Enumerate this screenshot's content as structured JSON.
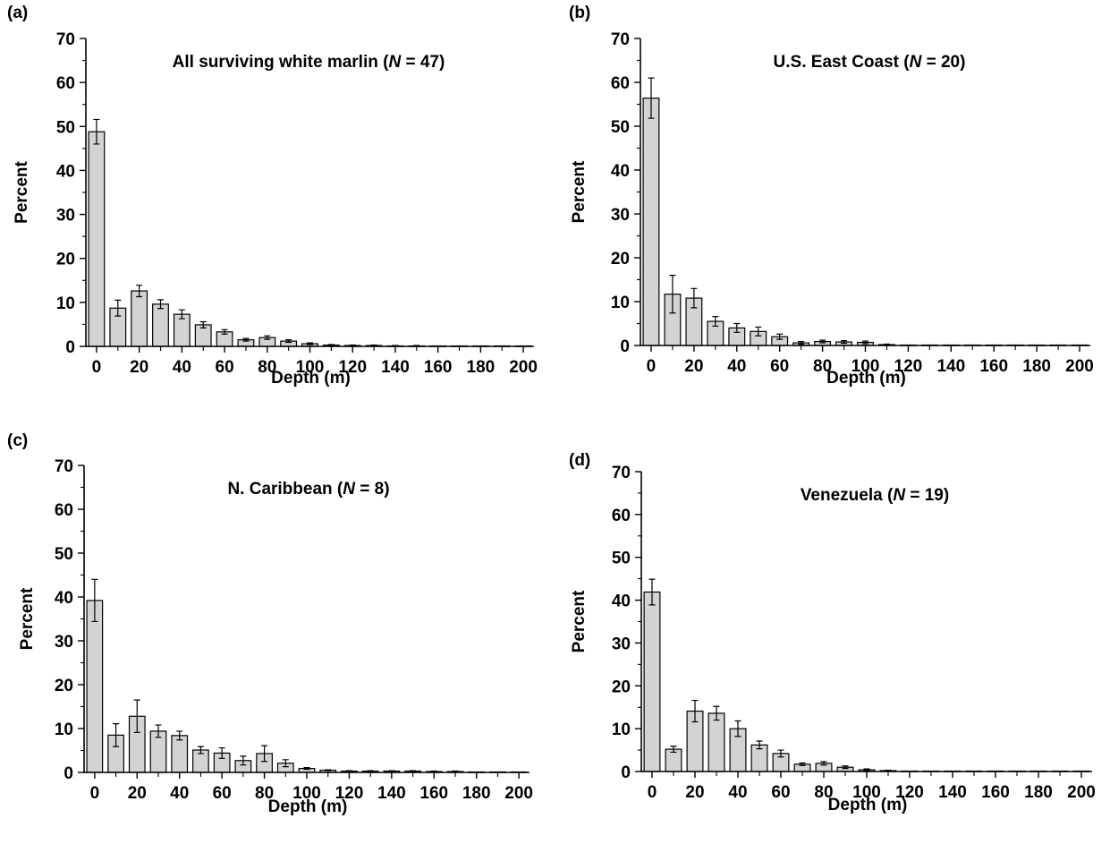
{
  "chart_data": [
    {
      "type": "bar",
      "panel_label": "(a)",
      "title": {
        "prefix": "All surviving white marlin (",
        "italic": "N",
        "suffix": " = 47)"
      },
      "xlabel": "Depth (m)",
      "ylabel": "Percent",
      "ylim": [
        0,
        70
      ],
      "yticks": [
        0,
        10,
        20,
        30,
        40,
        50,
        60,
        70
      ],
      "xticks": [
        0,
        20,
        40,
        60,
        80,
        100,
        120,
        140,
        160,
        180,
        200
      ],
      "x": [
        0,
        10,
        20,
        30,
        40,
        50,
        60,
        70,
        80,
        90,
        100,
        110,
        120,
        130,
        140,
        150,
        160,
        170,
        180,
        190,
        200
      ],
      "values": [
        48.8,
        8.7,
        12.6,
        9.6,
        7.3,
        4.9,
        3.3,
        1.5,
        2.0,
        1.2,
        0.6,
        0.3,
        0.2,
        0.2,
        0.1,
        0.1,
        0.1,
        0.1,
        0.1,
        0.1,
        0.1
      ],
      "errors": [
        2.8,
        1.8,
        1.3,
        1.0,
        1.0,
        0.7,
        0.5,
        0.3,
        0.4,
        0.3,
        0.2,
        0.1,
        0.1,
        0.1,
        0.1,
        0.1,
        0.0,
        0.0,
        0.0,
        0.0,
        0.0
      ]
    },
    {
      "type": "bar",
      "panel_label": "(b)",
      "title": {
        "prefix": "U.S. East Coast (",
        "italic": "N",
        "suffix": " = 20)"
      },
      "xlabel": "Depth (m)",
      "ylabel": "Percent",
      "ylim": [
        0,
        70
      ],
      "yticks": [
        0,
        10,
        20,
        30,
        40,
        50,
        60,
        70
      ],
      "xticks": [
        0,
        20,
        40,
        60,
        80,
        100,
        120,
        140,
        160,
        180,
        200
      ],
      "x": [
        0,
        10,
        20,
        30,
        40,
        50,
        60,
        70,
        80,
        90,
        100,
        110,
        120,
        130,
        140,
        150,
        160,
        170,
        180,
        190,
        200
      ],
      "values": [
        56.4,
        11.7,
        10.8,
        5.5,
        4.0,
        3.2,
        2.0,
        0.6,
        0.9,
        0.8,
        0.7,
        0.2,
        0.1,
        0.1,
        0.1,
        0.1,
        0.1,
        0.1,
        0.1,
        0.1,
        0.1
      ],
      "errors": [
        4.6,
        4.3,
        2.2,
        1.1,
        1.0,
        1.0,
        0.6,
        0.3,
        0.3,
        0.3,
        0.3,
        0.1,
        0.0,
        0.0,
        0.0,
        0.0,
        0.0,
        0.0,
        0.0,
        0.0,
        0.0
      ]
    },
    {
      "type": "bar",
      "panel_label": "(c)",
      "title": {
        "prefix": "N. Caribbean (",
        "italic": "N",
        "suffix": " = 8)"
      },
      "xlabel": "Depth (m)",
      "ylabel": "Percent",
      "ylim": [
        0,
        70
      ],
      "yticks": [
        0,
        10,
        20,
        30,
        40,
        50,
        60,
        70
      ],
      "xticks": [
        0,
        20,
        40,
        60,
        80,
        100,
        120,
        140,
        160,
        180,
        200
      ],
      "x": [
        0,
        10,
        20,
        30,
        40,
        50,
        60,
        70,
        80,
        90,
        100,
        110,
        120,
        130,
        140,
        150,
        160,
        170,
        180,
        190,
        200
      ],
      "values": [
        39.2,
        8.5,
        12.8,
        9.4,
        8.4,
        5.1,
        4.4,
        2.7,
        4.3,
        2.1,
        0.9,
        0.5,
        0.3,
        0.3,
        0.3,
        0.3,
        0.2,
        0.2,
        0.1,
        0.1,
        0.1
      ],
      "errors": [
        4.8,
        2.6,
        3.7,
        1.4,
        1.0,
        0.8,
        1.2,
        1.0,
        1.8,
        0.8,
        0.2,
        0.1,
        0.1,
        0.1,
        0.1,
        0.1,
        0.1,
        0.1,
        0.0,
        0.0,
        0.0
      ]
    },
    {
      "type": "bar",
      "panel_label": "(d)",
      "title": {
        "prefix": "Venezuela (",
        "italic": "N",
        "suffix": " = 19)"
      },
      "xlabel": "Depth (m)",
      "ylabel": "Percent",
      "ylim": [
        0,
        70
      ],
      "yticks": [
        0,
        10,
        20,
        30,
        40,
        50,
        60,
        70
      ],
      "xticks": [
        0,
        20,
        40,
        60,
        80,
        100,
        120,
        140,
        160,
        180,
        200
      ],
      "x": [
        0,
        10,
        20,
        30,
        40,
        50,
        60,
        70,
        80,
        90,
        100,
        110,
        120,
        130,
        140,
        150,
        160,
        170,
        180,
        190,
        200
      ],
      "values": [
        41.9,
        5.2,
        14.1,
        13.6,
        10.0,
        6.2,
        4.2,
        1.7,
        1.9,
        1.0,
        0.4,
        0.2,
        0.1,
        0.1,
        0.1,
        0.1,
        0.1,
        0.1,
        0.1,
        0.1,
        0.1
      ],
      "errors": [
        3.0,
        0.7,
        2.5,
        1.6,
        1.8,
        0.9,
        0.8,
        0.3,
        0.4,
        0.3,
        0.2,
        0.1,
        0.0,
        0.0,
        0.0,
        0.0,
        0.0,
        0.0,
        0.0,
        0.0,
        0.0
      ]
    }
  ]
}
